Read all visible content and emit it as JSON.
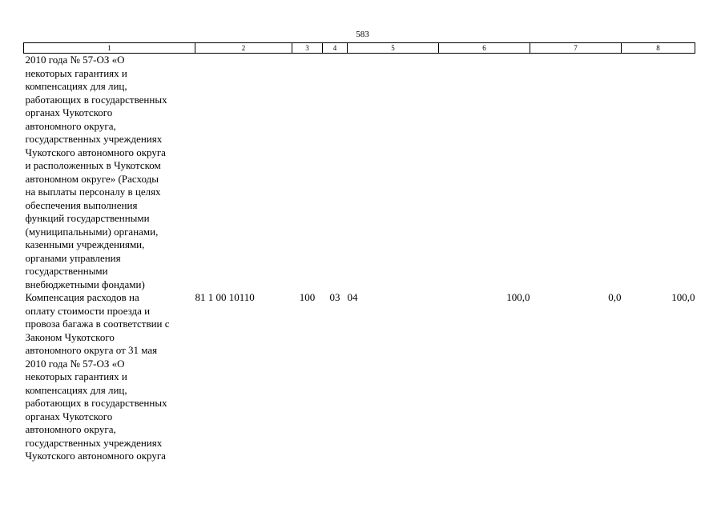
{
  "page_number": "583",
  "table": {
    "column_headers": [
      "1",
      "2",
      "3",
      "4",
      "5",
      "6",
      "7",
      "8"
    ],
    "rows": [
      {
        "description_lines": [
          "2010 года № 57-ОЗ «О",
          "некоторых гарантиях и",
          "компенсациях для лиц,",
          "работающих в государственных",
          "органах Чукотского",
          "автономного округа,",
          "государственных учреждениях",
          "Чукотского автономного округа",
          "и расположенных в Чукотском",
          "автономном округе» (Расходы",
          "на выплаты персоналу в целях",
          "обеспечения выполнения",
          "функций государственными",
          "(муниципальными) органами,",
          "казенными учреждениями,",
          "органами управления",
          "государственными",
          "внебюджетными фондами)"
        ],
        "code": "",
        "type": "",
        "section": "",
        "subsection": "",
        "value_6": "",
        "value_7": "",
        "value_8": ""
      },
      {
        "description_lines": [
          "Компенсация расходов на",
          "оплату стоимости проезда и",
          "провоза багажа в соответствии с",
          "Законом Чукотского",
          "автономного округа от 31 мая",
          "2010 года № 57-ОЗ «О",
          "некоторых гарантиях и",
          "компенсациях для лиц,",
          "работающих в государственных",
          "органах Чукотского",
          "автономного округа,",
          "государственных учреждениях",
          "Чукотского автономного округа"
        ],
        "code": "81 1 00 10110",
        "type": "100",
        "section": "03",
        "subsection": "04",
        "value_6": "100,0",
        "value_7": "0,0",
        "value_8": "100,0"
      }
    ]
  }
}
